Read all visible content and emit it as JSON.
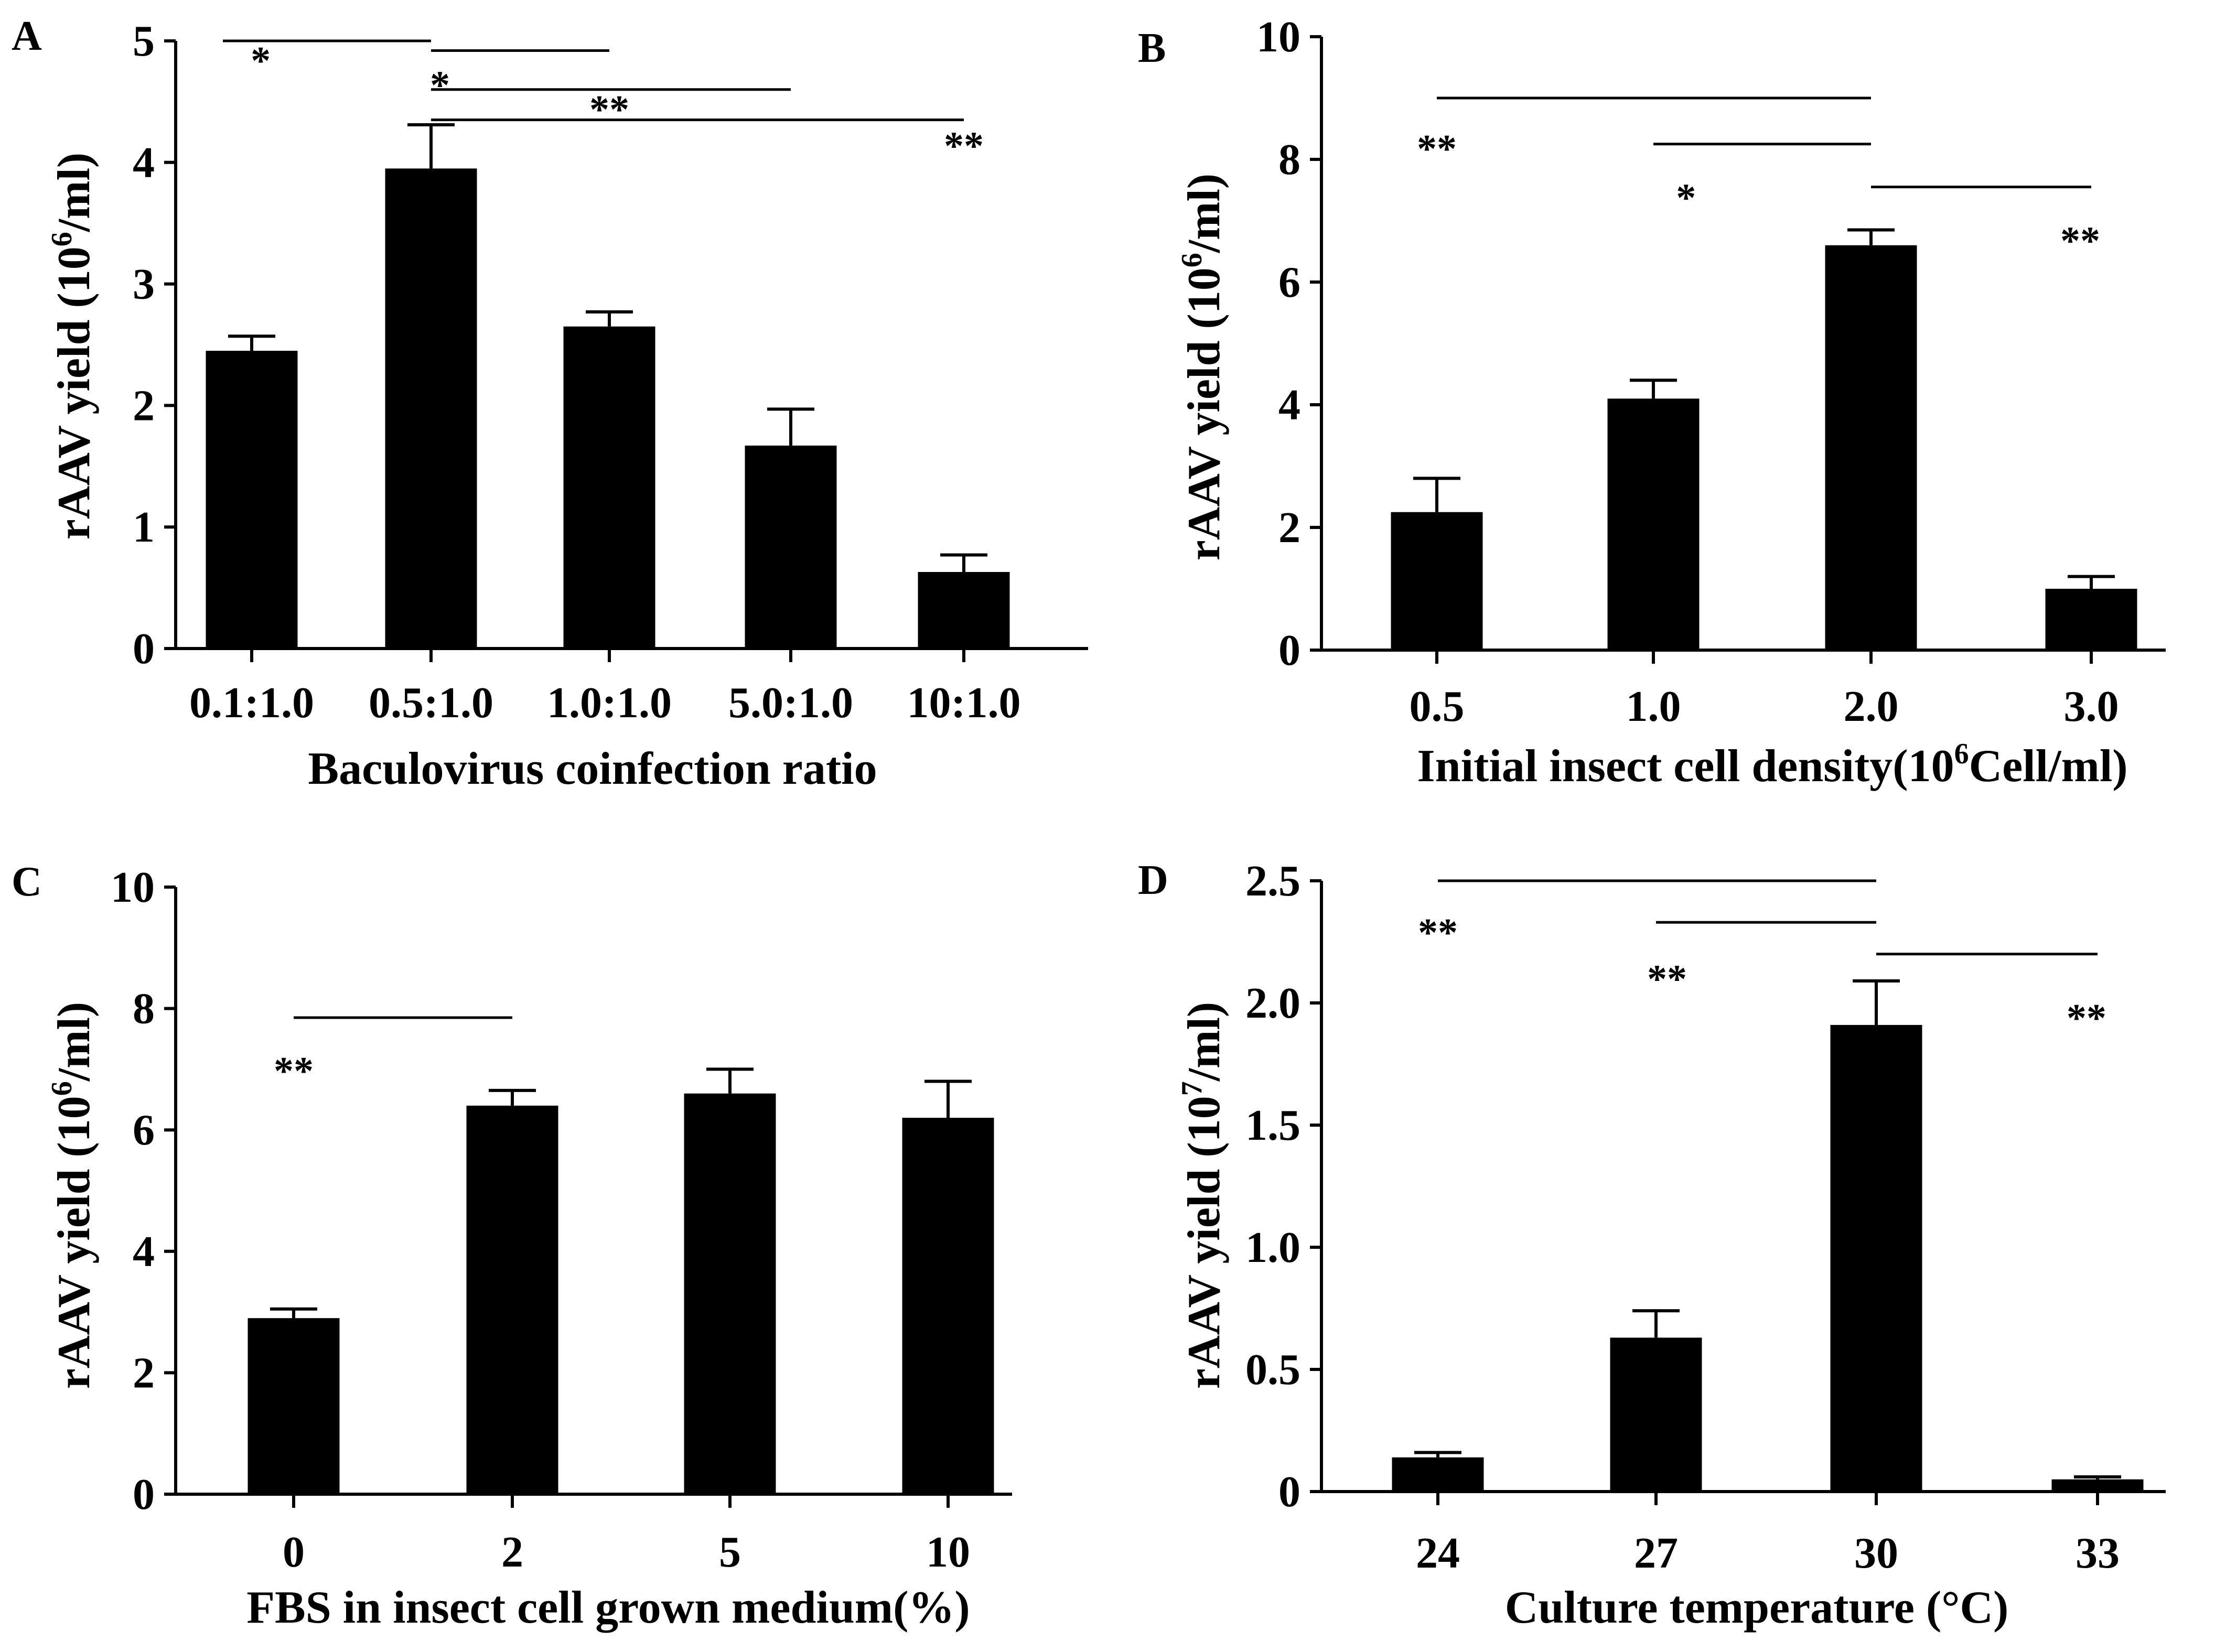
{
  "chart_data": [
    {
      "panel": "A",
      "type": "bar",
      "categories": [
        "0.1:1.0",
        "0.5:1.0",
        "1.0:1.0",
        "5.0:1.0",
        "10:1.0"
      ],
      "values": [
        2.45,
        3.95,
        2.65,
        1.67,
        0.63
      ],
      "errors": [
        0.12,
        0.36,
        0.12,
        0.3,
        0.14
      ],
      "xlabel": "Baculovirus coinfection ratio",
      "ylabel_main": "rAAV yield (10",
      "ylabel_exp": "6",
      "ylabel_unit": "/ml)",
      "ylim": [
        0,
        5
      ],
      "yticks": [
        "0",
        "1",
        "2",
        "3",
        "4",
        "5"
      ],
      "color": "#000000",
      "significance": [
        {
          "from": 0,
          "to": 1,
          "level": 5.0,
          "text": "*",
          "text_level": 4.9,
          "text_at": 0.05
        },
        {
          "from": 1,
          "to": 2,
          "level": 4.92,
          "text": "*",
          "text_level": 4.7,
          "text_at": 1.05
        },
        {
          "from": 1,
          "to": 3,
          "level": 4.6,
          "text": "**",
          "text_level": 4.5,
          "text_at": 2.0
        },
        {
          "from": 1,
          "to": 4,
          "level": 4.35,
          "text": "**",
          "text_level": 4.2,
          "text_at": 4.03
        }
      ]
    },
    {
      "panel": "B",
      "type": "bar",
      "categories": [
        "0.5",
        "1.0",
        "2.0",
        "3.0"
      ],
      "values": [
        2.25,
        4.1,
        6.6,
        1.0
      ],
      "errors": [
        0.55,
        0.3,
        0.25,
        0.2
      ],
      "xlabel_main": "Initial insect cell density(10",
      "xlabel_exp": "6",
      "xlabel_unit": "Cell/ml)",
      "ylabel_main": "rAAV yield (10",
      "ylabel_exp": "6",
      "ylabel_unit": "/ml)",
      "ylim": [
        0,
        10
      ],
      "yticks": [
        "0",
        "2",
        "4",
        "6",
        "8",
        "10"
      ],
      "color": "#000000",
      "significance": [
        {
          "from": 0,
          "to": 2,
          "level": 9.0,
          "text": "**",
          "text_level": 8.3,
          "text_at": 0.0
        },
        {
          "from": 1,
          "to": 2,
          "level": 8.25,
          "text": "*",
          "text_level": 7.5,
          "text_at": 1.15
        },
        {
          "from": 2,
          "to": 3,
          "level": 7.55,
          "text": "**",
          "text_at": 2.95,
          "text_level": 6.8
        }
      ]
    },
    {
      "panel": "C",
      "type": "bar",
      "categories": [
        "0",
        "2",
        "5",
        "10"
      ],
      "values": [
        2.9,
        6.4,
        6.6,
        6.2
      ],
      "errors": [
        0.15,
        0.25,
        0.4,
        0.6
      ],
      "xlabel": "FBS in insect cell grown medium(%)",
      "ylabel_main": "rAAV yield (10",
      "ylabel_exp": "6",
      "ylabel_unit": "/ml)",
      "ylim": [
        0,
        10
      ],
      "yticks": [
        "0",
        "2",
        "4",
        "6",
        "8",
        "10"
      ],
      "color": "#000000",
      "significance": [
        {
          "from": 0,
          "to": 1,
          "level": 7.85,
          "text": "**",
          "text_level": 7.1,
          "text_at": 0.0
        }
      ]
    },
    {
      "panel": "D",
      "type": "bar",
      "categories": [
        "24",
        "27",
        "30",
        "33"
      ],
      "values": [
        0.14,
        0.63,
        1.91,
        0.05
      ],
      "errors": [
        0.02,
        0.11,
        0.18,
        0.01
      ],
      "xlabel": "Culture temperature (°C)",
      "ylabel_main": "rAAV yield (10",
      "ylabel_exp": "7",
      "ylabel_unit": "/ml)",
      "ylim": [
        0,
        2.5
      ],
      "yticks": [
        "0",
        "0.5",
        "1.0",
        "1.5",
        "2.0",
        "2.5"
      ],
      "yticks_vals": [
        0,
        0.5,
        1.0,
        1.5,
        2.0,
        2.5
      ],
      "color": "#000000",
      "significance": [
        {
          "from": 0,
          "to": 2,
          "level": 2.5,
          "text": "**",
          "text_level": 2.32,
          "text_at": 0.0
        },
        {
          "from": 1,
          "to": 2,
          "level": 2.33,
          "text": "**",
          "text_level": 2.13,
          "text_at": 1.05
        },
        {
          "from": 2,
          "to": 3,
          "level": 2.2,
          "text": "**",
          "text_level": 1.97,
          "text_at": 2.95
        }
      ]
    }
  ]
}
